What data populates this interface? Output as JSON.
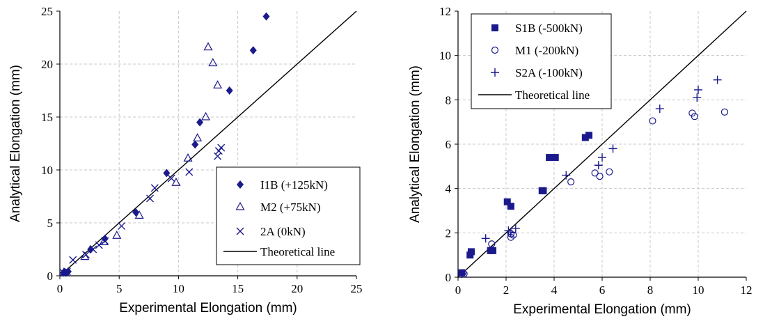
{
  "marker_color": "#1a1a8c",
  "chart_data": [
    {
      "type": "scatter",
      "xlabel": "Experimental Elongation (mm)",
      "ylabel": "Analytical Elongation (mm)",
      "xlim": [
        0,
        25
      ],
      "ylim": [
        0,
        25
      ],
      "xticks": [
        "0",
        "5",
        "10",
        "15",
        "20",
        "25"
      ],
      "yticks": [
        "0",
        "5",
        "10",
        "15",
        "20",
        "25"
      ],
      "grid": true,
      "legend_position": "bottom-right",
      "series": [
        {
          "name": "I1B (+125kN)",
          "marker": "diamond",
          "points": [
            [
              0.3,
              0.3
            ],
            [
              0.5,
              0.3
            ],
            [
              0.7,
              0.4
            ],
            [
              2.6,
              2.5
            ],
            [
              3.8,
              3.5
            ],
            [
              6.4,
              6.0
            ],
            [
              9.0,
              9.7
            ],
            [
              11.4,
              12.4
            ],
            [
              11.8,
              14.5
            ],
            [
              14.3,
              17.5
            ],
            [
              16.3,
              21.3
            ],
            [
              17.4,
              24.5
            ]
          ]
        },
        {
          "name": "M2 (+75kN)",
          "marker": "triangle",
          "points": [
            [
              0.4,
              0.3
            ],
            [
              2.1,
              1.8
            ],
            [
              3.7,
              3.2
            ],
            [
              4.8,
              3.8
            ],
            [
              6.7,
              5.7
            ],
            [
              9.8,
              8.8
            ],
            [
              10.8,
              11.1
            ],
            [
              11.6,
              13.0
            ],
            [
              12.3,
              15.0
            ],
            [
              13.3,
              18.0
            ],
            [
              12.9,
              20.1
            ],
            [
              12.5,
              21.6
            ]
          ]
        },
        {
          "name": "2A (0kN)",
          "marker": "cross",
          "points": [
            [
              0.3,
              0.3
            ],
            [
              0.6,
              0.4
            ],
            [
              1.1,
              1.5
            ],
            [
              2.2,
              2.0
            ],
            [
              2.8,
              2.5
            ],
            [
              3.3,
              2.9
            ],
            [
              3.8,
              3.3
            ],
            [
              5.2,
              4.7
            ],
            [
              7.6,
              7.3
            ],
            [
              8.0,
              8.3
            ],
            [
              9.4,
              9.2
            ],
            [
              10.9,
              9.8
            ],
            [
              13.3,
              11.3
            ],
            [
              13.4,
              11.8
            ],
            [
              13.6,
              12.1
            ]
          ]
        },
        {
          "name": "Theoretical line",
          "marker": "line",
          "points": [
            [
              0,
              0
            ],
            [
              25,
              25
            ]
          ]
        }
      ]
    },
    {
      "type": "scatter",
      "xlabel": "Experimental Elongation (mm)",
      "ylabel": "Analytical Elongation (mm)",
      "xlim": [
        0,
        12
      ],
      "ylim": [
        0,
        12
      ],
      "xticks": [
        "0",
        "2",
        "4",
        "6",
        "8",
        "10",
        "12"
      ],
      "yticks": [
        "0",
        "2",
        "4",
        "6",
        "8",
        "10",
        "12"
      ],
      "grid": true,
      "legend_position": "top-left",
      "series": [
        {
          "name": "S1B (-500kN)",
          "marker": "square",
          "points": [
            [
              0.15,
              0.2
            ],
            [
              0.5,
              1.0
            ],
            [
              0.55,
              1.15
            ],
            [
              1.35,
              1.2
            ],
            [
              1.45,
              1.2
            ],
            [
              2.05,
              3.4
            ],
            [
              2.2,
              3.2
            ],
            [
              3.5,
              3.9
            ],
            [
              3.55,
              3.9
            ],
            [
              3.8,
              5.4
            ],
            [
              4.05,
              5.4
            ],
            [
              5.3,
              6.3
            ],
            [
              5.45,
              6.4
            ]
          ]
        },
        {
          "name": "M1 (-200kN)",
          "marker": "circle",
          "points": [
            [
              0.2,
              0.2
            ],
            [
              0.25,
              0.15
            ],
            [
              1.4,
              1.5
            ],
            [
              2.2,
              1.8
            ],
            [
              2.2,
              1.95
            ],
            [
              2.3,
              1.9
            ],
            [
              4.7,
              4.3
            ],
            [
              5.7,
              4.7
            ],
            [
              5.9,
              4.55
            ],
            [
              6.3,
              4.75
            ],
            [
              8.1,
              7.05
            ],
            [
              9.75,
              7.4
            ],
            [
              9.85,
              7.25
            ],
            [
              11.1,
              7.45
            ]
          ]
        },
        {
          "name": "S2A (-100kN)",
          "marker": "plus",
          "points": [
            [
              0.15,
              0.15
            ],
            [
              1.15,
              1.75
            ],
            [
              2.1,
              2.1
            ],
            [
              2.2,
              2.0
            ],
            [
              2.4,
              2.2
            ],
            [
              4.5,
              4.6
            ],
            [
              5.85,
              5.05
            ],
            [
              6.0,
              5.4
            ],
            [
              6.45,
              5.8
            ],
            [
              8.4,
              7.6
            ],
            [
              9.95,
              8.1
            ],
            [
              10.0,
              8.45
            ],
            [
              10.8,
              8.9
            ]
          ]
        },
        {
          "name": "Theoretical line",
          "marker": "line",
          "points": [
            [
              0,
              0
            ],
            [
              12,
              12
            ]
          ]
        }
      ]
    }
  ]
}
